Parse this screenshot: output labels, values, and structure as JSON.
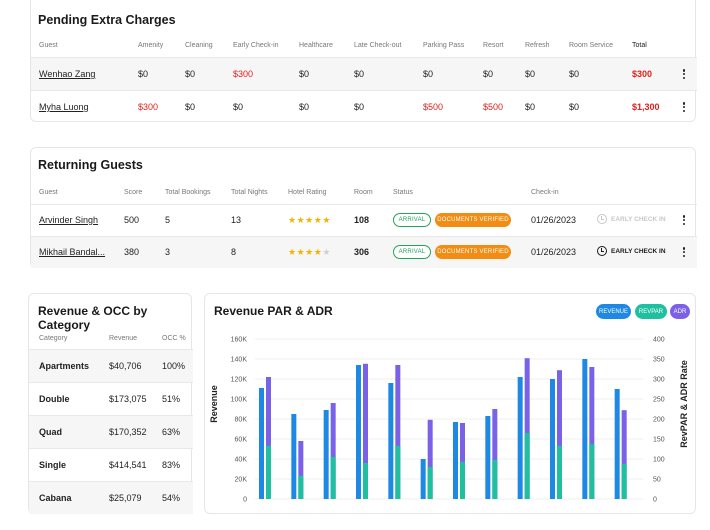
{
  "pending": {
    "title": "Pending Extra Charges",
    "headers": [
      "Guest",
      "Amenity",
      "Cleaning",
      "Early Check-in",
      "Healthcare",
      "Late Check-out",
      "Parking Pass",
      "Resort",
      "Refresh",
      "Room Service",
      "Total"
    ],
    "rows": [
      {
        "guest": "Wenhao Zang",
        "values": [
          "$0",
          "$0",
          "$300",
          "$0",
          "$0",
          "$0",
          "$0",
          "$0",
          "$0"
        ],
        "red": [
          false,
          false,
          true,
          false,
          false,
          false,
          false,
          false,
          false
        ],
        "total": "$300"
      },
      {
        "guest": "Myha Luong",
        "values": [
          "$300",
          "$0",
          "$0",
          "$0",
          "$0",
          "$500",
          "$500",
          "$0",
          "$0"
        ],
        "red": [
          true,
          false,
          false,
          false,
          false,
          true,
          true,
          false,
          false
        ],
        "total": "$1,300"
      }
    ]
  },
  "returning": {
    "title": "Returning Guests",
    "headers": [
      "Guest",
      "Score",
      "Total Bookings",
      "Total Nights",
      "Hotel Rating",
      "Room",
      "Status",
      "Check-in"
    ],
    "rows": [
      {
        "guest": "Arvinder Singh",
        "score": "500",
        "bookings": "5",
        "nights": "13",
        "rating": 5,
        "room": "108",
        "status1": "ARRIVAL",
        "status2": "DOCUMENTS VERIFIED",
        "date": "01/26/2023",
        "checkin": "EARLY CHECK IN",
        "checkin_active": false
      },
      {
        "guest": "Mikhail Bandal...",
        "score": "380",
        "bookings": "3",
        "nights": "8",
        "rating": 4,
        "room": "306",
        "status1": "ARRIVAL",
        "status2": "DOCUMENTS VERIFIED",
        "date": "01/26/2023",
        "checkin": "EARLY CHECK IN",
        "checkin_active": true
      }
    ]
  },
  "occ": {
    "title": "Revenue & OCC by Category",
    "headers": [
      "Category",
      "Revenue",
      "OCC %"
    ],
    "rows": [
      {
        "category": "Apartments",
        "revenue": "$40,706",
        "occ": "100%"
      },
      {
        "category": "Double",
        "revenue": "$173,075",
        "occ": "51%"
      },
      {
        "category": "Quad",
        "revenue": "$170,352",
        "occ": "63%"
      },
      {
        "category": "Single",
        "revenue": "$414,541",
        "occ": "83%"
      },
      {
        "category": "Cabana",
        "revenue": "$25,079",
        "occ": "54%"
      }
    ]
  },
  "colors": {
    "revenue": "#1e88e5",
    "revpar": "#1fbfa0",
    "adr": "#7b61e8"
  },
  "chart_data": {
    "type": "bar",
    "title": "Revenue PAR & ADR",
    "legend": [
      "REVENUE",
      "REVPAR",
      "ADR"
    ],
    "legend_position": "top-right",
    "ylabel": "Revenue",
    "y2label": "RevPAR & ADR Rate",
    "ylim": [
      0,
      160000
    ],
    "y2lim": [
      0,
      400
    ],
    "yticks": [
      "0",
      "20K",
      "40K",
      "60K",
      "80K",
      "100K",
      "120K",
      "140K",
      "160K"
    ],
    "y2ticks": [
      "0",
      "50",
      "100",
      "150",
      "200",
      "250",
      "300",
      "350",
      "400"
    ],
    "grid": true,
    "series": [
      {
        "name": "REVENUE",
        "axis": "left",
        "values": [
          111000,
          85000,
          89000,
          134000,
          116000,
          40000,
          77000,
          83000,
          122000,
          120000,
          140000,
          110000
        ]
      },
      {
        "name": "REVPAR",
        "axis": "right",
        "values": [
          133,
          58,
          105,
          90,
          133,
          80,
          93,
          98,
          165,
          133,
          138,
          88
        ]
      },
      {
        "name": "ADR",
        "axis": "right",
        "values": [
          305,
          145,
          240,
          338,
          335,
          198,
          190,
          225,
          352,
          322,
          330,
          222
        ]
      }
    ]
  }
}
